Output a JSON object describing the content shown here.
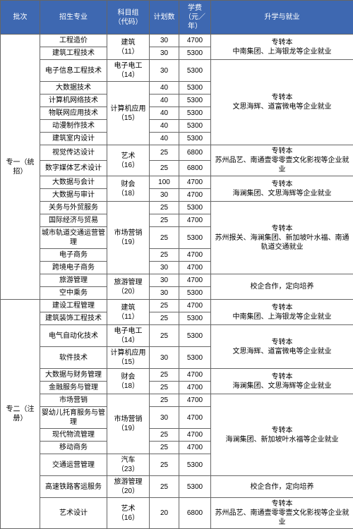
{
  "headers": {
    "batch": "批次",
    "major": "招生专业",
    "group": "科目组\n（代码）",
    "plan": "计划数",
    "fee": "学费\n（元／年）",
    "career": "升学与就业"
  },
  "colors": {
    "header_bg": "#3e68b1",
    "header_fg": "#ffffff",
    "border": "#666666"
  },
  "batches": [
    {
      "name": "专一（统招）",
      "groups": [
        {
          "group": "建筑\n（11）",
          "rows": [
            {
              "major": "工程造价",
              "plan": "30",
              "fee": "4700"
            },
            {
              "major": "建筑工程技术",
              "plan": "30",
              "fee": "5300"
            }
          ],
          "career": "专转本\n中南集团、上海银龙等企业就业"
        },
        {
          "group": "电子电工\n（14）",
          "rows": [
            {
              "major": "电子信息工程技术",
              "plan": "30",
              "fee": "5300"
            }
          ],
          "career_merge_next": true
        },
        {
          "group": "计算机应用\n（15）",
          "rows": [
            {
              "major": "大数据技术",
              "plan": "40",
              "fee": "5300"
            },
            {
              "major": "计算机网络技术",
              "plan": "40",
              "fee": "5300"
            },
            {
              "major": "物联网应用技术",
              "plan": "40",
              "fee": "5300"
            },
            {
              "major": "动漫制作技术",
              "plan": "40",
              "fee": "5300"
            },
            {
              "major": "建筑室内设计",
              "plan": "40",
              "fee": "5300"
            }
          ],
          "career": "专转本\n文思海辉、道富微电等企业就业"
        },
        {
          "group": "艺术\n（16）",
          "rows": [
            {
              "major": "视觉传达设计",
              "plan": "25",
              "fee": "6800"
            },
            {
              "major": "数字媒体艺术设计",
              "plan": "25",
              "fee": "6800"
            }
          ],
          "career": "专转本\n苏州品艺、南通壹零零壹文化影视等企业就业"
        },
        {
          "group": "财会\n（18）",
          "rows": [
            {
              "major": "大数据与会计",
              "plan": "100",
              "fee": "4700"
            },
            {
              "major": "大数据与审计",
              "plan": "30",
              "fee": "4700"
            }
          ],
          "career": "专转本\n海澜集团、文思海辉等企业就业"
        },
        {
          "group": "市场营销\n（19）",
          "rows": [
            {
              "major": "关务与外贸服务",
              "plan": "25",
              "fee": "5300"
            },
            {
              "major": "国际经济与贸易",
              "plan": "25",
              "fee": "4700"
            },
            {
              "major": "城市轨道交通运营管理",
              "plan": "25",
              "fee": "5300"
            },
            {
              "major": "电子商务",
              "plan": "25",
              "fee": "4700"
            },
            {
              "major": "跨境电子商务",
              "plan": "30",
              "fee": "4700"
            }
          ],
          "career": "专转本\n苏州报关、海澜集团、新加坡叶水福、南通轨道交通就业"
        },
        {
          "group": "旅游管理\n（20）",
          "rows": [
            {
              "major": "旅游管理",
              "plan": "30",
              "fee": "4700"
            },
            {
              "major": "空中乘务",
              "plan": "30",
              "fee": "5300"
            }
          ],
          "career": "校企合作，定向培养"
        }
      ]
    },
    {
      "name": "专二（注册）",
      "groups": [
        {
          "group": "建筑\n（11）",
          "rows": [
            {
              "major": "建设工程管理",
              "plan": "25",
              "fee": "4700"
            },
            {
              "major": "建筑装饰工程技术",
              "plan": "25",
              "fee": "5300"
            }
          ],
          "career": "专转本\n中南集团、上海银龙等企业就业"
        },
        {
          "group": "电子电工\n（14）",
          "rows": [
            {
              "major": "电气自动化技术",
              "plan": "25",
              "fee": "5300"
            }
          ],
          "career_merge_next": true
        },
        {
          "group": "计算机应用\n（15）",
          "rows": [
            {
              "major": "软件技术",
              "plan": "30",
              "fee": "5300"
            }
          ],
          "career": "专转本\n文思海辉、道富微电等企业就业"
        },
        {
          "group": "财会\n（18）",
          "rows": [
            {
              "major": "大数据与财务管理",
              "plan": "25",
              "fee": "4700"
            },
            {
              "major": "金融服务与管理",
              "plan": "25",
              "fee": "4700"
            }
          ],
          "career": "专转本\n海澜集团、文思海辉等企业就业"
        },
        {
          "group": "市场营销\n（19）",
          "rows": [
            {
              "major": "市场营销",
              "plan": "25",
              "fee": "4700"
            },
            {
              "major": "婴幼儿托育服务与管理",
              "plan": "30",
              "fee": "4700"
            },
            {
              "major": "现代物流管理",
              "plan": "25",
              "fee": "4700"
            },
            {
              "major": "移动商务",
              "plan": "25",
              "fee": "4700"
            }
          ],
          "career": "专转本\n海澜集团、新加坡叶水福等企业就业"
        },
        {
          "group": "汽车\n（23）",
          "rows": [
            {
              "major": "交通运营管理",
              "plan": "25",
              "fee": "5300"
            }
          ],
          "career_merge_prev": true
        },
        {
          "group": "旅游管理\n（20）",
          "rows": [
            {
              "major": "高速铁路客运服务",
              "plan": "25",
              "fee": "5300"
            }
          ],
          "career": "校企合作，定向培养"
        },
        {
          "group": "艺术\n（16）",
          "rows": [
            {
              "major": "艺术设计",
              "plan": "20",
              "fee": "6800"
            }
          ],
          "career": "专转本\n苏州品艺、南通壹零零壹文化影视等企业就业"
        }
      ]
    }
  ]
}
